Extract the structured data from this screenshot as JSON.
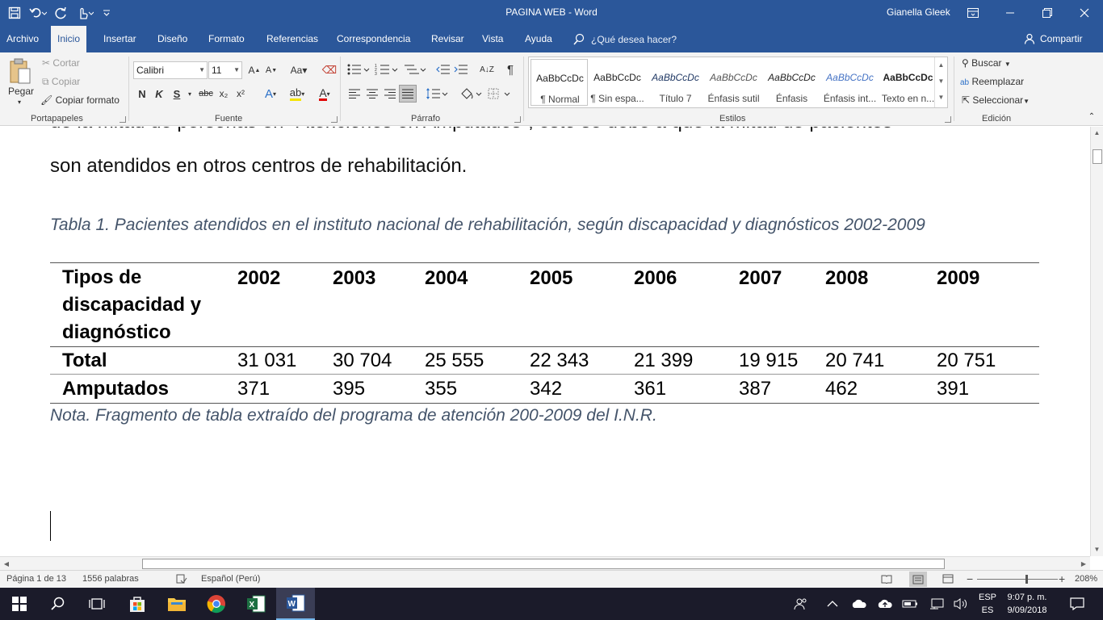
{
  "window": {
    "title": "PAGINA WEB  -  Word",
    "user": "Gianella Gleek"
  },
  "menu": {
    "tabs": [
      "Archivo",
      "Inicio",
      "Insertar",
      "Diseño",
      "Formato",
      "Referencias",
      "Correspondencia",
      "Revisar",
      "Vista",
      "Ayuda"
    ],
    "active_tab": "Inicio",
    "tell_me": "¿Qué desea hacer?",
    "share": "Compartir"
  },
  "ribbon": {
    "clipboard": {
      "paste": "Pegar",
      "cut": "Cortar",
      "copy": "Copiar",
      "format_painter": "Copiar formato",
      "label": "Portapapeles"
    },
    "font": {
      "name": "Calibri",
      "size": "11",
      "bold": "N",
      "italic": "K",
      "underline": "S",
      "strike": "abc",
      "subscript": "x₂",
      "superscript": "x²",
      "label": "Fuente"
    },
    "paragraph": {
      "label": "Párrafo"
    },
    "styles": {
      "label": "Estilos",
      "items": [
        {
          "preview": "AaBbCcDc",
          "name": "¶ Normal"
        },
        {
          "preview": "AaBbCcDc",
          "name": "¶ Sin espa..."
        },
        {
          "preview": "AaBbCcDc",
          "name": "Título 7"
        },
        {
          "preview": "AaBbCcDc",
          "name": "Énfasis sutil"
        },
        {
          "preview": "AaBbCcDc",
          "name": "Énfasis"
        },
        {
          "preview": "AaBbCcDc",
          "name": "Énfasis int..."
        },
        {
          "preview": "AaBbCcDc",
          "name": "Texto en n..."
        }
      ]
    },
    "editing": {
      "find": "Buscar",
      "replace": "Reemplazar",
      "select": "Seleccionar",
      "label": "Edición"
    }
  },
  "document": {
    "partial_line": "de la mitad de personas en \"Atenciones en Amputados\", esto se debe a que la mitad de pacientes",
    "body_line": "son atendidos en otros centros de rehabilitación.",
    "caption": "Tabla 1.  Pacientes atendidos en el instituto nacional de rehabilitación, según discapacidad y diagnósticos 2002-2009",
    "table": {
      "header_lines": [
        "Tipos de",
        "discapacidad y",
        "diagnóstico"
      ],
      "years": [
        "2002",
        "2003",
        "2004",
        "2005",
        "2006",
        "2007",
        "2008",
        "2009"
      ],
      "rows": [
        {
          "label": "Total",
          "values": [
            "31 031",
            "30 704",
            "25 555",
            "22 343",
            "21 399",
            "19 915",
            "20 741",
            "20 751"
          ]
        },
        {
          "label": "Amputados",
          "values": [
            "371",
            "395",
            "355",
            "342",
            "361",
            "387",
            "462",
            "391"
          ]
        }
      ]
    },
    "note": "Nota. Fragmento de tabla extraído del programa de atención 200-2009 del I.N.R."
  },
  "status": {
    "page": "Página 1 de 13",
    "words": "1556 palabras",
    "language": "Español (Perú)",
    "zoom": "208%"
  },
  "taskbar": {
    "lang_top": "ESP",
    "lang_bottom": "ES",
    "time": "9:07 p. m.",
    "date": "9/09/2018"
  },
  "colors": {
    "word_blue": "#2b579a",
    "caption_color": "#44546a",
    "taskbar": "#1b1b2a"
  }
}
